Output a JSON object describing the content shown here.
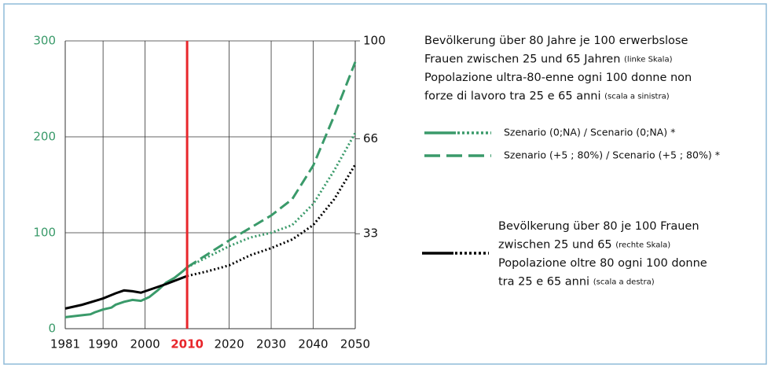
{
  "chart_data": {
    "type": "line",
    "xlim": [
      1981,
      2050
    ],
    "xticks": [
      1981,
      1990,
      2000,
      2010,
      2020,
      2030,
      2040,
      2050
    ],
    "ylim": [
      0,
      300
    ],
    "yticks": [
      0,
      100,
      200,
      300
    ],
    "y2lim": [
      0,
      100
    ],
    "y2ticks": [
      33,
      66,
      100
    ],
    "grid": true,
    "left_axis_color": "#3a9a6a",
    "highlight_x": 2010,
    "highlight_color": "#e8262b",
    "series": [
      {
        "color": "#3a9a6a",
        "dash": "solid",
        "x": [
          1981,
          1983,
          1985,
          1987,
          1988,
          1990,
          1992,
          1993,
          1995,
          1997,
          1999,
          2001,
          2003,
          2005,
          2007,
          2009,
          2010
        ],
        "values": [
          12,
          13,
          14,
          15,
          17,
          20,
          22,
          25,
          28,
          30,
          29,
          33,
          40,
          48,
          53,
          60,
          64
        ]
      },
      {
        "color": "#3a9a6a",
        "dash": "dotted",
        "x": [
          2010,
          2015,
          2020,
          2025,
          2030,
          2035,
          2040,
          2045,
          2050
        ],
        "values": [
          64,
          75,
          86,
          95,
          100,
          108,
          130,
          165,
          204
        ]
      },
      {
        "color": "#3a9a6a",
        "dash": "dashed",
        "x": [
          2010,
          2015,
          2020,
          2025,
          2030,
          2035,
          2040,
          2045,
          2050
        ],
        "values": [
          64,
          78,
          92,
          105,
          118,
          135,
          170,
          222,
          278
        ]
      },
      {
        "color": "#000000",
        "dash": "solid",
        "axis": "y2",
        "x": [
          1981,
          1985,
          1990,
          1993,
          1995,
          1997,
          1999,
          2002,
          2005,
          2008,
          2010
        ],
        "values": [
          7,
          8.3,
          10.5,
          12.3,
          13.3,
          13,
          12.5,
          14,
          15.5,
          17.2,
          18.3
        ]
      },
      {
        "color": "#000000",
        "dash": "dotted",
        "axis": "y2",
        "x": [
          2010,
          2015,
          2020,
          2025,
          2030,
          2035,
          2040,
          2045,
          2050
        ],
        "values": [
          18.3,
          20,
          22,
          25.5,
          28,
          31,
          36,
          45,
          57
        ]
      }
    ],
    "legend_entries": [
      "Szenario (0;NA) / Scenario (0;NA) *",
      "Szenario (+5 ; 80%) / Scenario (+5 ; 80%) *"
    ],
    "notes": [
      {
        "lines": [
          {
            "text": "Bevölkerung über 80 Jahre je 100 erwerbslose"
          },
          {
            "text": "Frauen zwischen 25 und 65 Jahren",
            "small": "(linke Skala)"
          },
          {
            "text": "Popolazione ultra-80-enne ogni 100 donne non"
          },
          {
            "text": "forze di lavoro tra 25 e 65 anni",
            "small": "(scala a sinistra)"
          }
        ]
      },
      {
        "lines": [
          {
            "text": "Bevölkerung über 80 je 100  Frauen"
          },
          {
            "text": "zwischen 25 und 65",
            "small": "(rechte Skala)"
          },
          {
            "text": "Popolazione oltre 80 ogni 100 donne"
          },
          {
            "text": "tra 25 e 65 anni",
            "small": "(scala a destra)"
          }
        ]
      }
    ]
  }
}
